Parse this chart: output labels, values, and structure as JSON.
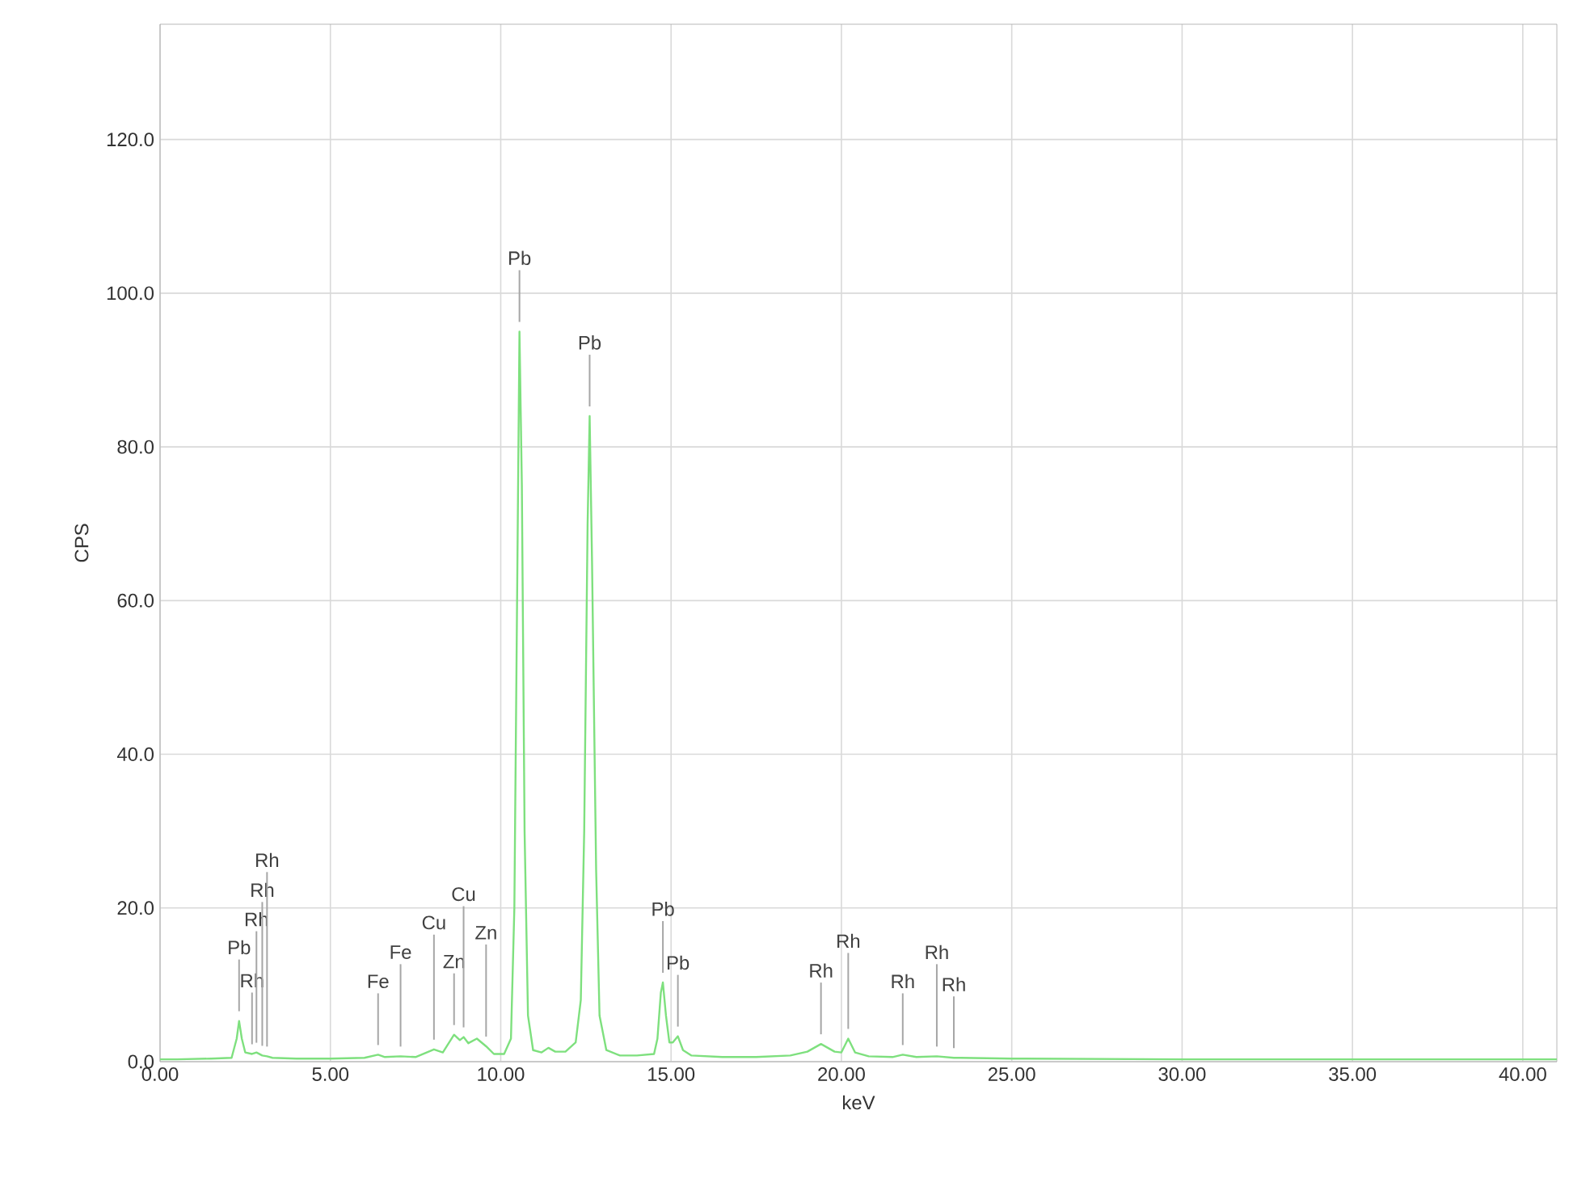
{
  "chart_data": {
    "type": "line",
    "xlabel": "keV",
    "ylabel": "CPS",
    "xlim": [
      0,
      41
    ],
    "ylim": [
      0,
      135
    ],
    "xticks": [
      {
        "value": 0,
        "label": "0.00"
      },
      {
        "value": 5,
        "label": "5.00"
      },
      {
        "value": 10,
        "label": "10.00"
      },
      {
        "value": 15,
        "label": "15.00"
      },
      {
        "value": 20,
        "label": "20.00"
      },
      {
        "value": 25,
        "label": "25.00"
      },
      {
        "value": 30,
        "label": "30.00"
      },
      {
        "value": 35,
        "label": "35.00"
      },
      {
        "value": 40,
        "label": "40.00"
      }
    ],
    "yticks": [
      {
        "value": 0,
        "label": "0.0"
      },
      {
        "value": 20,
        "label": "20.0"
      },
      {
        "value": 40,
        "label": "40.0"
      },
      {
        "value": 60,
        "label": "60.0"
      },
      {
        "value": 80,
        "label": "80.0"
      },
      {
        "value": 100,
        "label": "100.0"
      },
      {
        "value": 120,
        "label": "120.0"
      }
    ],
    "grid": true,
    "marker": "none",
    "line_style": "solid",
    "series": [
      {
        "color": "#7ee07e",
        "x": [
          0,
          0.5,
          1.5,
          2.1,
          2.25,
          2.32,
          2.4,
          2.5,
          2.7,
          2.83,
          3.0,
          3.14,
          3.3,
          4,
          5,
          6.0,
          6.4,
          6.6,
          7.06,
          7.5,
          8.04,
          8.3,
          8.63,
          8.8,
          8.91,
          9.05,
          9.3,
          9.57,
          9.8,
          10.1,
          10.3,
          10.4,
          10.5,
          10.55,
          10.62,
          10.7,
          10.8,
          10.95,
          11.2,
          11.4,
          11.6,
          11.9,
          12.2,
          12.35,
          12.45,
          12.55,
          12.61,
          12.68,
          12.8,
          12.9,
          13.1,
          13.5,
          14.0,
          14.5,
          14.6,
          14.7,
          14.76,
          14.85,
          14.95,
          15.05,
          15.2,
          15.35,
          15.6,
          16.5,
          17.5,
          18.5,
          19.0,
          19.4,
          19.8,
          20.0,
          20.2,
          20.4,
          20.8,
          21.5,
          21.8,
          22.2,
          22.8,
          23.3,
          23.5,
          25,
          30,
          35,
          40,
          41
        ],
        "values": [
          0.3,
          0.3,
          0.4,
          0.5,
          3,
          5.3,
          3,
          1.2,
          1.0,
          1.2,
          0.8,
          0.7,
          0.5,
          0.4,
          0.4,
          0.5,
          0.9,
          0.6,
          0.7,
          0.6,
          1.6,
          1.2,
          3.5,
          2.8,
          3.2,
          2.4,
          3.0,
          2.0,
          1.0,
          1.0,
          3,
          20,
          70,
          95,
          75,
          30,
          6,
          1.5,
          1.2,
          1.8,
          1.3,
          1.3,
          2.5,
          8,
          30,
          70,
          84,
          65,
          25,
          6,
          1.5,
          0.8,
          0.8,
          1.0,
          3,
          9,
          10.3,
          6,
          2.5,
          2.5,
          3.3,
          1.5,
          0.8,
          0.6,
          0.6,
          0.8,
          1.3,
          2.3,
          1.3,
          1.2,
          3.0,
          1.2,
          0.7,
          0.6,
          0.9,
          0.6,
          0.7,
          0.5,
          0.5,
          0.4,
          0.3,
          0.3,
          0.3,
          0.3
        ]
      }
    ],
    "annotations": [
      {
        "text": "Pb",
        "x": 2.32,
        "y": 5.3
      },
      {
        "text": "Rh",
        "x": 2.7,
        "y": 1.0
      },
      {
        "text": "Rh",
        "x": 2.83,
        "y": 1.2
      },
      {
        "text": "Rh",
        "x": 3.0,
        "y": 0.8
      },
      {
        "text": "Rh",
        "x": 3.14,
        "y": 0.7
      },
      {
        "text": "Fe",
        "x": 6.4,
        "y": 0.9
      },
      {
        "text": "Fe",
        "x": 7.06,
        "y": 0.7
      },
      {
        "text": "Cu",
        "x": 8.04,
        "y": 1.6
      },
      {
        "text": "Zn",
        "x": 8.63,
        "y": 3.5
      },
      {
        "text": "Cu",
        "x": 8.91,
        "y": 3.2
      },
      {
        "text": "Zn",
        "x": 9.57,
        "y": 2.0
      },
      {
        "text": "Pb",
        "x": 10.55,
        "y": 95
      },
      {
        "text": "Pb",
        "x": 12.61,
        "y": 84
      },
      {
        "text": "Pb",
        "x": 14.76,
        "y": 10.3
      },
      {
        "text": "Pb",
        "x": 15.2,
        "y": 3.3
      },
      {
        "text": "Rh",
        "x": 19.4,
        "y": 2.3
      },
      {
        "text": "Rh",
        "x": 20.2,
        "y": 3.0
      },
      {
        "text": "Rh",
        "x": 21.8,
        "y": 0.9
      },
      {
        "text": "Rh",
        "x": 22.8,
        "y": 0.7
      },
      {
        "text": "Rh",
        "x": 23.3,
        "y": 0.5
      }
    ]
  }
}
